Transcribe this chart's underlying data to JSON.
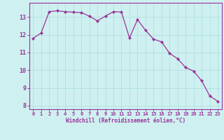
{
  "x": [
    0,
    1,
    2,
    3,
    4,
    5,
    6,
    7,
    8,
    9,
    10,
    11,
    12,
    13,
    14,
    15,
    16,
    17,
    18,
    19,
    20,
    21,
    22,
    23
  ],
  "y": [
    11.8,
    12.1,
    13.3,
    13.35,
    13.3,
    13.27,
    13.25,
    13.05,
    12.78,
    13.05,
    13.3,
    13.28,
    11.82,
    12.85,
    12.25,
    11.75,
    11.6,
    10.95,
    10.65,
    10.15,
    9.95,
    9.4,
    8.55,
    8.25
  ],
  "line_color": "#993399",
  "marker": "D",
  "markersize": 2.2,
  "linewidth": 0.9,
  "xlabel": "Windchill (Refroidissement éolien,°C)",
  "xlim": [
    -0.5,
    23.5
  ],
  "ylim": [
    7.8,
    13.8
  ],
  "yticks": [
    8,
    9,
    10,
    11,
    12,
    13
  ],
  "xticks": [
    0,
    1,
    2,
    3,
    4,
    5,
    6,
    7,
    8,
    9,
    10,
    11,
    12,
    13,
    14,
    15,
    16,
    17,
    18,
    19,
    20,
    21,
    22,
    23
  ],
  "bg_color": "#cff0f0",
  "grid_color": "#aadddd",
  "axis_color": "#993399",
  "tick_color": "#993399",
  "label_color": "#993399"
}
